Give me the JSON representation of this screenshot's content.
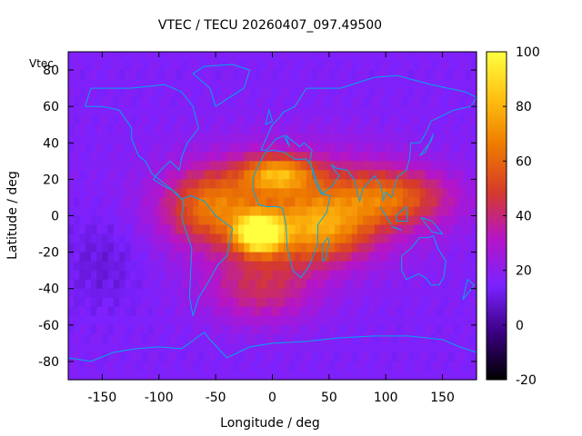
{
  "chart_data": {
    "type": "heatmap",
    "title": "VTEC / TECU 20260407_097.49500",
    "xlabel": "Longitude / deg",
    "ylabel": "Latitude / deg",
    "xlim": [
      -180,
      180
    ],
    "ylim": [
      -90,
      90
    ],
    "x_ticks": [
      -150,
      -100,
      -50,
      0,
      50,
      100,
      150
    ],
    "y_ticks": [
      80,
      60,
      40,
      20,
      0,
      -20,
      -40,
      -60,
      -80
    ],
    "colorbar": {
      "range": [
        -20,
        100
      ],
      "ticks": [
        100,
        80,
        60,
        40,
        20,
        0,
        -20
      ],
      "colormap": [
        "#000000",
        "#3a0080",
        "#7a22ff",
        "#b515c8",
        "#d63a2a",
        "#ee7a00",
        "#ffc010",
        "#ffff40"
      ]
    },
    "legend": "Vtec",
    "overlay": "coastlines",
    "overlay_color": "#00a8e8",
    "background_vtec": 16,
    "field_features": [
      {
        "name": "equatorial anomaly peak",
        "lon": -12,
        "lat": -10,
        "vtec": 95
      },
      {
        "name": "northern crest",
        "lon": 5,
        "lat": 23,
        "vtec": 82
      },
      {
        "name": "southern crest east",
        "lon": 40,
        "lat": -8,
        "vtec": 70
      },
      {
        "name": "southern crest west",
        "lon": -55,
        "lat": 5,
        "vtec": 62
      },
      {
        "name": "asian tail",
        "lon": 105,
        "lat": 10,
        "vtec": 55
      },
      {
        "name": "southern plume",
        "lon": -10,
        "lat": -40,
        "vtec": 45
      },
      {
        "name": "pacific low",
        "lon": -150,
        "lat": -25,
        "vtec": 10
      }
    ]
  }
}
